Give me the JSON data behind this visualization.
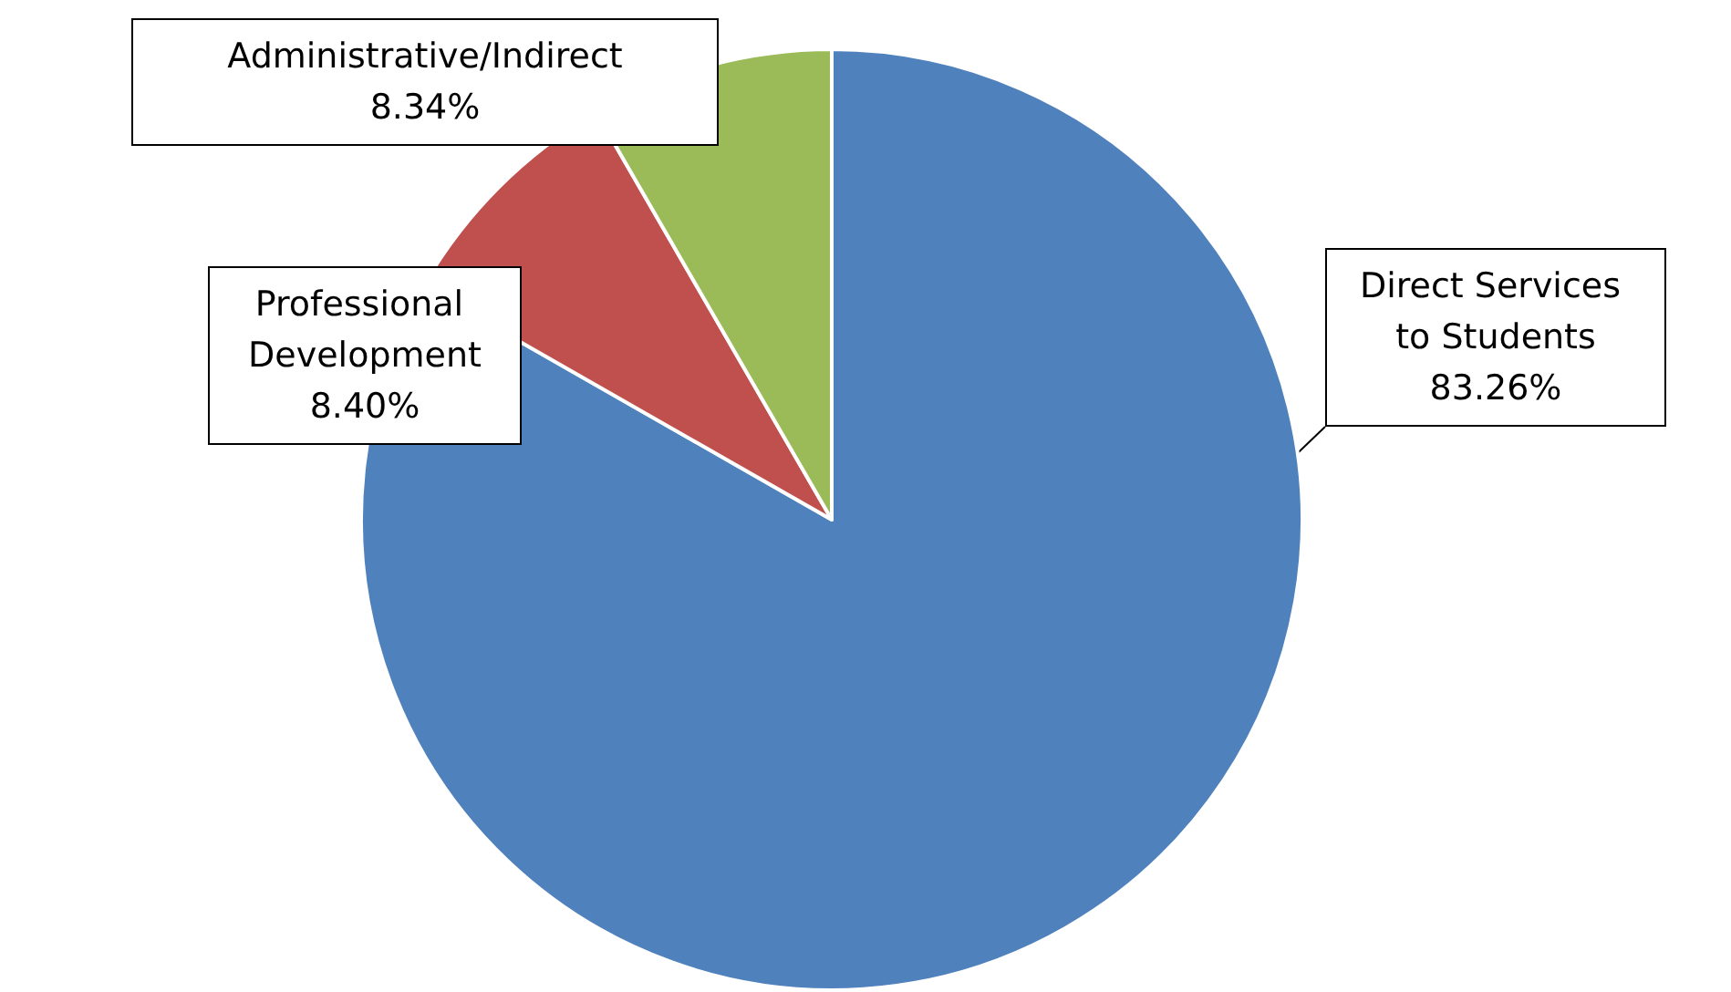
{
  "chart_data": {
    "type": "pie",
    "categories": [
      "Direct Services to Students",
      "Professional Development",
      "Administrative/Indirect"
    ],
    "values": [
      83.26,
      8.4,
      8.34
    ],
    "value_labels": [
      "83.26%",
      "8.40%",
      "8.34%"
    ],
    "colors": [
      "#4f81bd",
      "#c0504d",
      "#9bbb59"
    ],
    "legend": false
  }
}
